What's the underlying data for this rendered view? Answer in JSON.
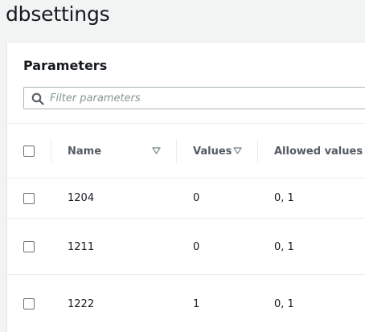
{
  "page": {
    "title": "dbsettings"
  },
  "parameters": {
    "header": "Parameters",
    "filter_placeholder": "Filter parameters",
    "columns": {
      "name": "Name",
      "values": "Values",
      "allowed_values": "Allowed values"
    },
    "rows": [
      {
        "name": "1204",
        "value": "0",
        "allowed": "0, 1"
      },
      {
        "name": "1211",
        "value": "0",
        "allowed": "0, 1"
      },
      {
        "name": "1222",
        "value": "1",
        "allowed": "0, 1"
      }
    ]
  },
  "icons": {
    "search": "search-icon",
    "sort": "sort-down-icon",
    "checkbox": "checkbox-empty"
  },
  "colors": {
    "background": "#f2f3f3",
    "panel": "#ffffff",
    "text": "#16191f",
    "muted": "#545b64",
    "border": "#eaeded"
  }
}
